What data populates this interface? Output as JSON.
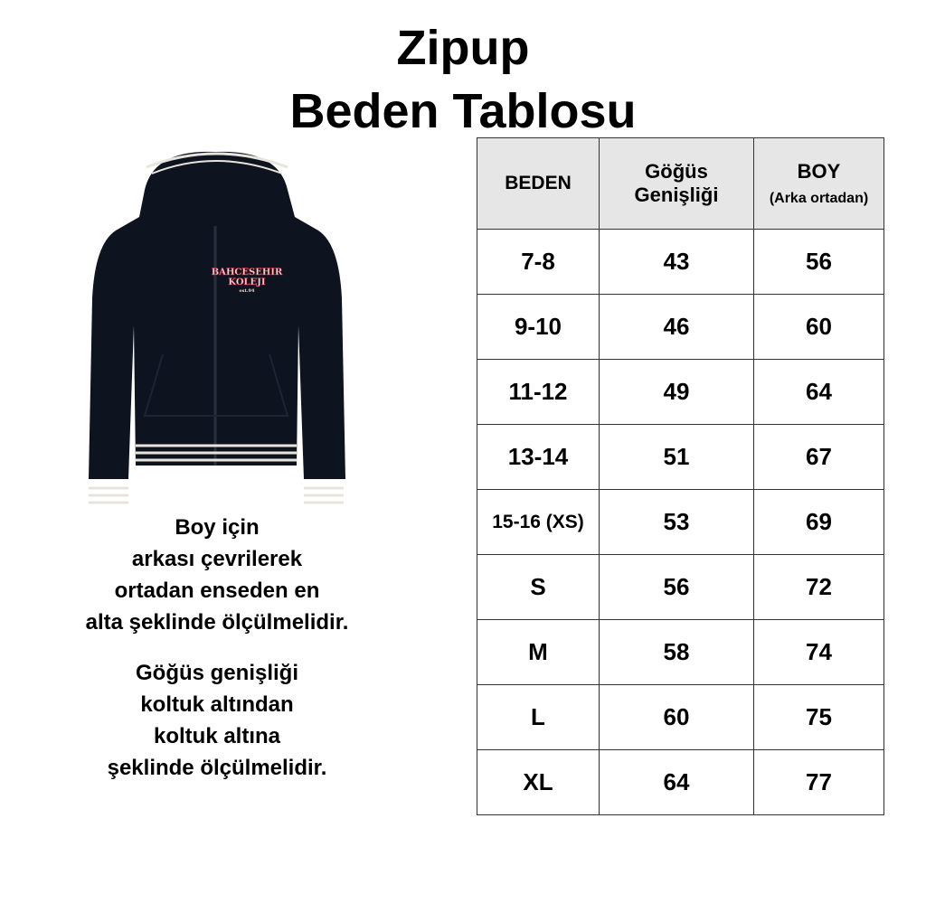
{
  "title": {
    "line1": "Zipup",
    "line2": "Beden Tablosu"
  },
  "product_image": {
    "logo_text": [
      "BAHCESEHIR",
      "KOLEJI",
      "est.94"
    ],
    "garment_color": "#0e1320",
    "stripe_color": "#e8e4dc"
  },
  "notes": {
    "boy": [
      "Boy için",
      "arkası çevrilerek",
      "ortadan enseden en",
      "alta şeklinde ölçülmelidir."
    ],
    "gogus": [
      "Göğüs genişliği",
      "koltuk altından",
      "koltuk altına",
      "şeklinde ölçülmelidir."
    ]
  },
  "table": {
    "headers": {
      "beden": "BEDEN",
      "gogus": [
        "Göğüs",
        "Genişliği"
      ],
      "boy": "BOY",
      "boy_sub": "(Arka ortadan)"
    },
    "rows": [
      [
        "7-8",
        "43",
        "56"
      ],
      [
        "9-10",
        "46",
        "60"
      ],
      [
        "11-12",
        "49",
        "64"
      ],
      [
        "13-14",
        "51",
        "67"
      ],
      [
        "15-16 (XS)",
        "53",
        "69"
      ],
      [
        "S",
        "56",
        "72"
      ],
      [
        "M",
        "58",
        "74"
      ],
      [
        "L",
        "60",
        "75"
      ],
      [
        "XL",
        "64",
        "77"
      ]
    ]
  }
}
